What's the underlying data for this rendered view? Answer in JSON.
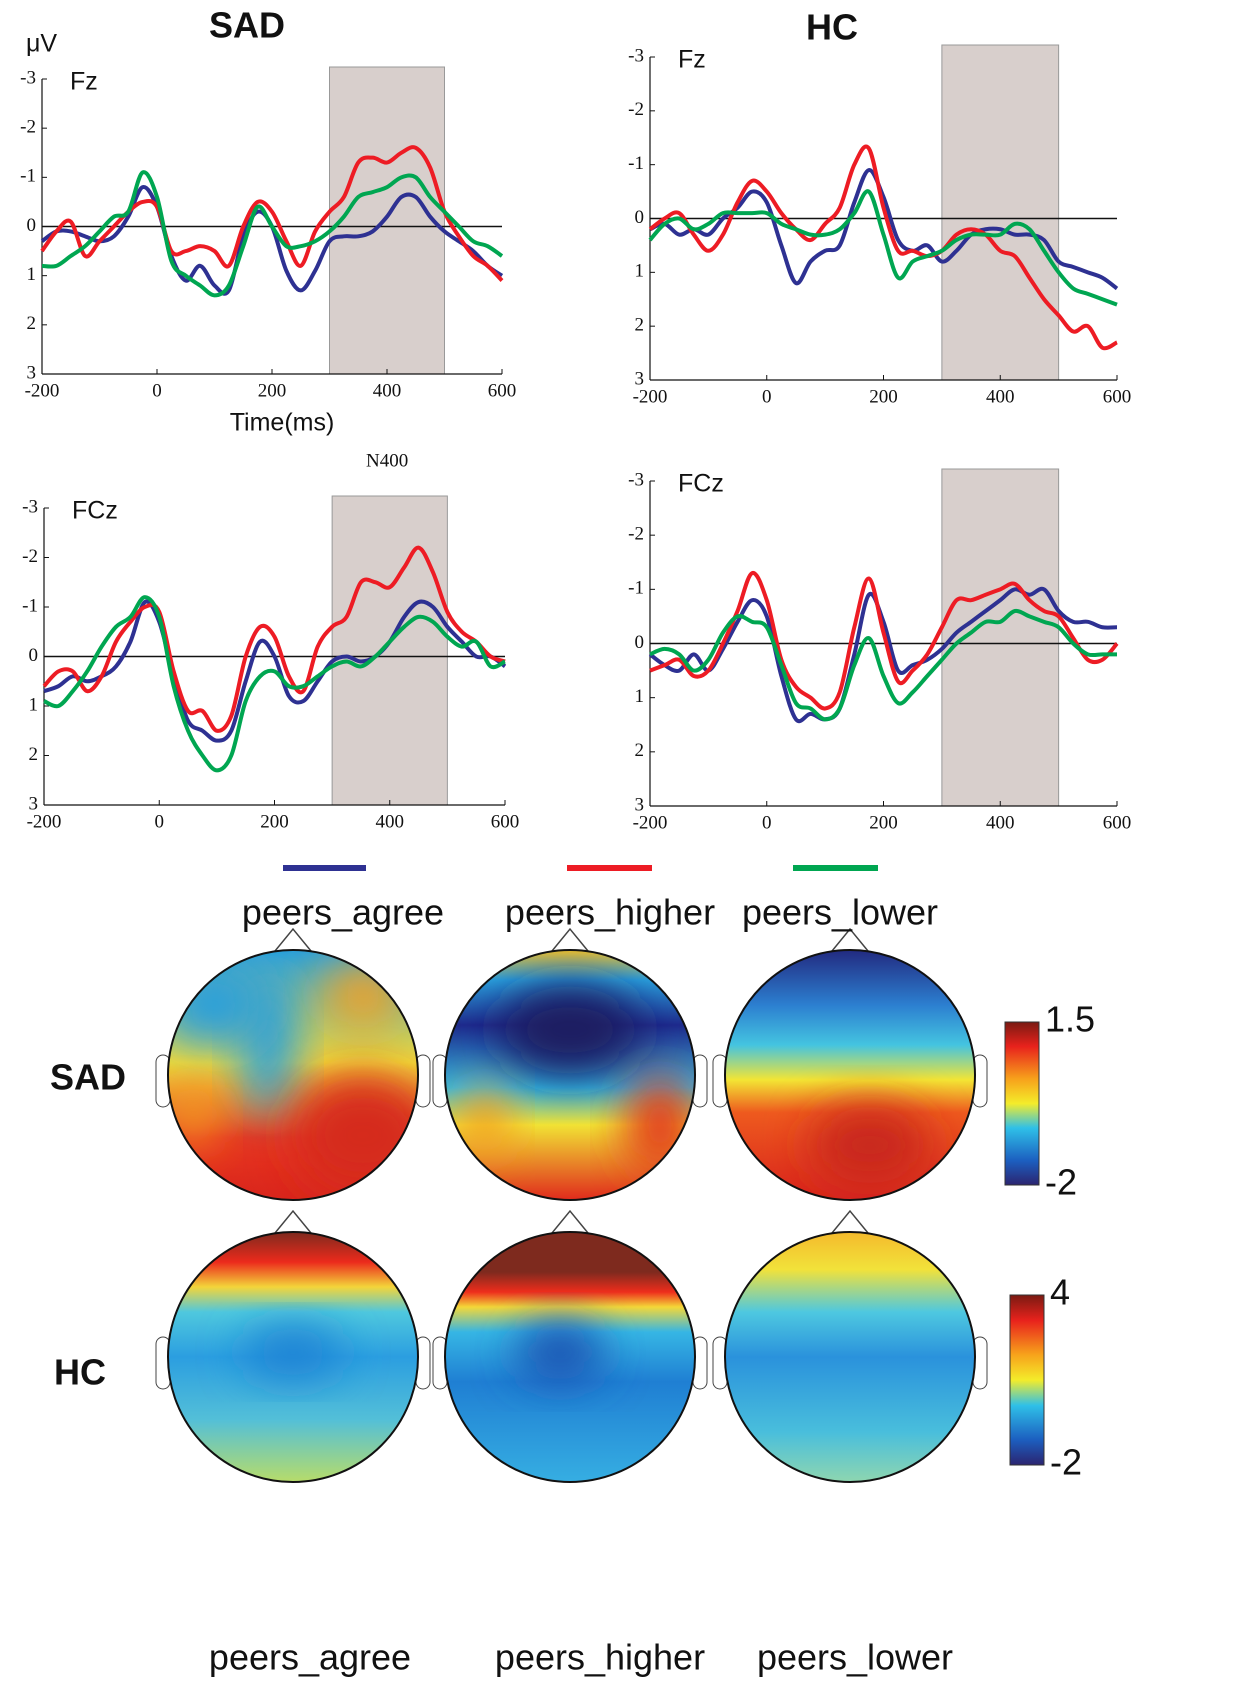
{
  "chart_data": [
    {
      "type": "line",
      "title": "SAD",
      "label": "Fz",
      "ylabel": "μV",
      "xlabel": "Time(ms)",
      "x": [
        -200,
        -175,
        -150,
        -125,
        -100,
        -75,
        -50,
        -25,
        0,
        25,
        50,
        75,
        100,
        125,
        150,
        175,
        200,
        225,
        250,
        275,
        300,
        325,
        350,
        375,
        400,
        425,
        450,
        475,
        500,
        525,
        550,
        575,
        600
      ],
      "xlim": [
        -200,
        600
      ],
      "xticks": [
        -200,
        0,
        200,
        400,
        600
      ],
      "ylim": [
        3,
        -3
      ],
      "yticks": [
        -3,
        -2,
        -1,
        0,
        1,
        2,
        3
      ],
      "highlight": [
        300,
        500
      ],
      "series": [
        {
          "name": "peers_agree",
          "color": "#2e3192",
          "values": [
            0.3,
            0.1,
            0.1,
            0.2,
            0.3,
            0.2,
            -0.2,
            -0.8,
            -0.4,
            0.6,
            1.1,
            0.8,
            1.2,
            1.3,
            0.2,
            -0.3,
            0,
            0.9,
            1.3,
            0.9,
            0.3,
            0.2,
            0.2,
            0.1,
            -0.2,
            -0.6,
            -0.6,
            -0.2,
            0.1,
            0.3,
            0.5,
            0.8,
            1.0
          ]
        },
        {
          "name": "peers_higher",
          "color": "#ed1c24",
          "values": [
            0.5,
            0.1,
            -0.1,
            0.6,
            0.3,
            0,
            -0.3,
            -0.5,
            -0.4,
            0.5,
            0.5,
            0.4,
            0.5,
            0.8,
            0,
            -0.5,
            -0.3,
            0.3,
            0.8,
            0.1,
            -0.3,
            -0.6,
            -1.3,
            -1.4,
            -1.3,
            -1.5,
            -1.6,
            -1.2,
            -0.3,
            0.2,
            0.6,
            0.8,
            1.1
          ]
        },
        {
          "name": "peers_lower",
          "color": "#00a651",
          "values": [
            0.8,
            0.8,
            0.6,
            0.4,
            0.1,
            -0.2,
            -0.3,
            -1.1,
            -0.6,
            0.7,
            1.0,
            1.2,
            1.4,
            1.2,
            0.4,
            -0.4,
            0,
            0.4,
            0.4,
            0.3,
            0.1,
            -0.2,
            -0.6,
            -0.7,
            -0.8,
            -1.0,
            -1.0,
            -0.6,
            -0.3,
            0,
            0.3,
            0.4,
            0.6
          ]
        }
      ]
    },
    {
      "type": "line",
      "title": "HC",
      "label": "Fz",
      "x": [
        -200,
        -175,
        -150,
        -125,
        -100,
        -75,
        -50,
        -25,
        0,
        25,
        50,
        75,
        100,
        125,
        150,
        175,
        200,
        225,
        250,
        275,
        300,
        325,
        350,
        375,
        400,
        425,
        450,
        475,
        500,
        525,
        550,
        575,
        600
      ],
      "xlim": [
        -200,
        600
      ],
      "xticks": [
        -200,
        0,
        200,
        400,
        600
      ],
      "ylim": [
        3,
        -3
      ],
      "yticks": [
        -3,
        -2,
        -1,
        0,
        1,
        2,
        3
      ],
      "highlight": [
        300,
        500
      ],
      "series": [
        {
          "color": "#2e3192",
          "values": [
            0.2,
            0.1,
            0.3,
            0.2,
            0.3,
            0,
            -0.2,
            -0.5,
            -0.3,
            0.5,
            1.2,
            0.8,
            0.6,
            0.5,
            -0.3,
            -0.9,
            -0.4,
            0.4,
            0.6,
            0.5,
            0.8,
            0.6,
            0.3,
            0.2,
            0.2,
            0.3,
            0.3,
            0.4,
            0.8,
            0.9,
            1.0,
            1.1,
            1.3
          ]
        },
        {
          "color": "#ed1c24",
          "values": [
            0.2,
            0,
            -0.1,
            0.3,
            0.6,
            0.3,
            -0.3,
            -0.7,
            -0.5,
            -0.1,
            0.2,
            0.4,
            0.1,
            -0.2,
            -1.0,
            -1.3,
            -0.2,
            0.6,
            0.6,
            0.7,
            0.6,
            0.3,
            0.2,
            0.3,
            0.6,
            0.7,
            1.1,
            1.5,
            1.8,
            2.1,
            2.0,
            2.4,
            2.3
          ]
        },
        {
          "color": "#00a651",
          "values": [
            0.4,
            0.1,
            0,
            0.2,
            0.1,
            -0.1,
            -0.1,
            -0.1,
            -0.1,
            0.1,
            0.2,
            0.3,
            0.3,
            0.2,
            -0.1,
            -0.5,
            0.3,
            1.1,
            0.8,
            0.7,
            0.6,
            0.4,
            0.3,
            0.3,
            0.3,
            0.1,
            0.2,
            0.6,
            1.0,
            1.3,
            1.4,
            1.5,
            1.6
          ]
        }
      ]
    },
    {
      "type": "line",
      "label": "FCz",
      "annotation": "N400",
      "x": [
        -200,
        -175,
        -150,
        -125,
        -100,
        -75,
        -50,
        -25,
        0,
        25,
        50,
        75,
        100,
        125,
        150,
        175,
        200,
        225,
        250,
        275,
        300,
        325,
        350,
        375,
        400,
        425,
        450,
        475,
        500,
        525,
        550,
        575,
        600
      ],
      "xlim": [
        -200,
        600
      ],
      "xticks": [
        -200,
        0,
        200,
        400,
        600
      ],
      "ylim": [
        3,
        -3
      ],
      "yticks": [
        -3,
        -2,
        -1,
        0,
        1,
        2,
        3
      ],
      "highlight": [
        300,
        500
      ],
      "series": [
        {
          "color": "#2e3192",
          "values": [
            0.7,
            0.6,
            0.4,
            0.5,
            0.4,
            0.2,
            -0.3,
            -1.1,
            -0.7,
            0.4,
            1.3,
            1.5,
            1.7,
            1.5,
            0.5,
            -0.3,
            0,
            0.8,
            0.9,
            0.5,
            0.1,
            0,
            0.1,
            0,
            -0.3,
            -0.8,
            -1.1,
            -1.0,
            -0.6,
            -0.3,
            0,
            0,
            0.2
          ]
        },
        {
          "color": "#ed1c24",
          "values": [
            0.6,
            0.3,
            0.3,
            0.7,
            0.4,
            -0.3,
            -0.7,
            -1.0,
            -0.9,
            0.3,
            1.1,
            1.1,
            1.5,
            1.2,
            0,
            -0.6,
            -0.4,
            0.4,
            0.7,
            -0.2,
            -0.6,
            -0.8,
            -1.5,
            -1.5,
            -1.4,
            -1.8,
            -2.2,
            -1.7,
            -0.9,
            -0.5,
            -0.3,
            0,
            0.1
          ]
        },
        {
          "color": "#00a651",
          "values": [
            0.9,
            1.0,
            0.7,
            0.3,
            -0.2,
            -0.6,
            -0.8,
            -1.2,
            -0.8,
            0.6,
            1.5,
            2.0,
            2.3,
            2.0,
            0.9,
            0.4,
            0.3,
            0.6,
            0.6,
            0.4,
            0.2,
            0.1,
            0.2,
            0,
            -0.3,
            -0.6,
            -0.8,
            -0.7,
            -0.4,
            -0.2,
            -0.3,
            0.2,
            0.1
          ]
        }
      ]
    },
    {
      "type": "line",
      "label": "FCz",
      "x": [
        -200,
        -175,
        -150,
        -125,
        -100,
        -75,
        -50,
        -25,
        0,
        25,
        50,
        75,
        100,
        125,
        150,
        175,
        200,
        225,
        250,
        275,
        300,
        325,
        350,
        375,
        400,
        425,
        450,
        475,
        500,
        525,
        550,
        575,
        600
      ],
      "xlim": [
        -200,
        600
      ],
      "xticks": [
        -200,
        0,
        200,
        400,
        600
      ],
      "ylim": [
        3,
        -3
      ],
      "yticks": [
        -3,
        -2,
        -1,
        0,
        1,
        2,
        3
      ],
      "highlight": [
        300,
        500
      ],
      "series": [
        {
          "color": "#2e3192",
          "values": [
            0.2,
            0.4,
            0.5,
            0.2,
            0.5,
            0.1,
            -0.4,
            -0.8,
            -0.5,
            0.6,
            1.4,
            1.3,
            1.4,
            1.2,
            0.2,
            -0.9,
            -0.4,
            0.5,
            0.4,
            0.3,
            0.1,
            -0.2,
            -0.4,
            -0.6,
            -0.8,
            -1.0,
            -0.9,
            -1.0,
            -0.6,
            -0.4,
            -0.4,
            -0.3,
            -0.3
          ]
        },
        {
          "color": "#ed1c24",
          "values": [
            0.5,
            0.4,
            0.3,
            0.6,
            0.5,
            0,
            -0.6,
            -1.3,
            -0.8,
            0.3,
            0.8,
            1.0,
            1.2,
            0.9,
            -0.3,
            -1.2,
            -0.2,
            0.7,
            0.5,
            0.2,
            -0.3,
            -0.8,
            -0.8,
            -0.9,
            -1.0,
            -1.1,
            -0.8,
            -0.6,
            -0.5,
            -0.1,
            0.3,
            0.3,
            0
          ]
        },
        {
          "color": "#00a651",
          "values": [
            0.2,
            0.1,
            0.2,
            0.5,
            0.3,
            -0.2,
            -0.5,
            -0.4,
            -0.3,
            0.4,
            1.1,
            1.2,
            1.4,
            1.2,
            0.4,
            -0.1,
            0.6,
            1.1,
            0.9,
            0.6,
            0.3,
            0,
            -0.2,
            -0.4,
            -0.4,
            -0.6,
            -0.5,
            -0.4,
            -0.3,
            0,
            0.2,
            0.2,
            0.2
          ]
        }
      ]
    }
  ],
  "topomaps": {
    "rows": [
      "SAD",
      "HC"
    ],
    "columns": [
      "peers_agree",
      "peers_higher",
      "peers_lower"
    ],
    "colorbars": [
      {
        "lim": [
          -2,
          1.5
        ],
        "ticks": [
          -2,
          1.5
        ]
      },
      {
        "lim": [
          -2,
          4
        ],
        "ticks": [
          -2,
          4
        ]
      }
    ]
  }
}
